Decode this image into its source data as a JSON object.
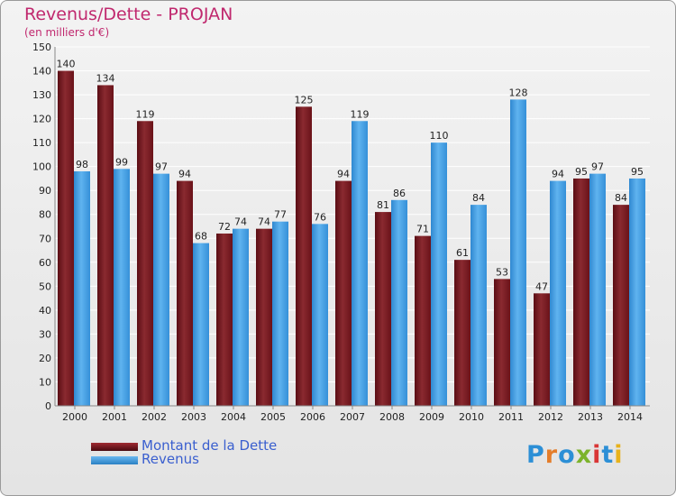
{
  "chart_data": {
    "type": "bar",
    "title": "Revenus/Dette - PROJAN",
    "subtitle": "(en milliers d'€)",
    "categories": [
      "2000",
      "2001",
      "2002",
      "2003",
      "2004",
      "2005",
      "2006",
      "2007",
      "2008",
      "2009",
      "2010",
      "2011",
      "2012",
      "2013",
      "2014"
    ],
    "series": [
      {
        "name": "Montant de la Dette",
        "color": "#7a1a22",
        "values": [
          140,
          134,
          119,
          94,
          72,
          74,
          125,
          94,
          81,
          71,
          61,
          53,
          47,
          95,
          84
        ]
      },
      {
        "name": "Revenus",
        "color": "#3d9de0",
        "values": [
          98,
          99,
          97,
          68,
          74,
          77,
          76,
          119,
          86,
          110,
          84,
          128,
          94,
          97,
          95
        ]
      }
    ],
    "ylim": [
      0,
      150
    ],
    "yticks": [
      0,
      10,
      20,
      30,
      40,
      50,
      60,
      70,
      80,
      90,
      100,
      110,
      120,
      130,
      140,
      150
    ],
    "grid": true,
    "legend_position": "bottom-left"
  },
  "logo": {
    "text": "Proxiti",
    "colors": [
      "#2c8fd6",
      "#e47d2a",
      "#2c8fd6",
      "#7cb32b",
      "#d93636",
      "#2c8fd6",
      "#e8b21a"
    ]
  }
}
